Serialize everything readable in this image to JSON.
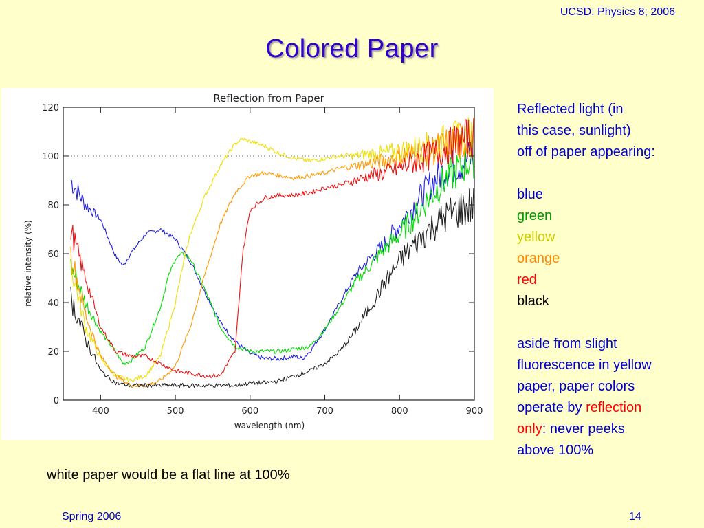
{
  "header": {
    "course": "UCSD: Physics 8; 2006"
  },
  "slide": {
    "title": "Colored Paper"
  },
  "side_text": {
    "intro": [
      "Reflected light (in",
      "this case, sunlight)",
      "off of paper appearing:"
    ],
    "colors": [
      {
        "label": "blue",
        "color": "#0000cc"
      },
      {
        "label": "green",
        "color": "#009900"
      },
      {
        "label": "yellow",
        "color": "#cccc00"
      },
      {
        "label": "orange",
        "color": "#ff8800"
      },
      {
        "label": "red",
        "color": "#ff0000"
      },
      {
        "label": "black",
        "color": "#000000"
      }
    ],
    "aside": [
      "aside from slight",
      "fluorescence in yellow",
      "paper, paper colors"
    ],
    "operate_prefix": "operate by ",
    "reflection_word": "reflection",
    "only_word": "only",
    "only_suffix": ": never peeks",
    "last_line": "above 100%"
  },
  "caption": "white paper would be a flat line at 100%",
  "footer": {
    "left": "Spring 2006",
    "page": "14"
  },
  "chart_data": {
    "type": "line",
    "title": "Reflection from Paper",
    "xlabel": "wavelength (nm)",
    "ylabel": "relative intensity (%)",
    "xlim": [
      350,
      900
    ],
    "ylim": [
      0,
      120
    ],
    "xticks": [
      400,
      500,
      600,
      700,
      800,
      900
    ],
    "yticks": [
      0,
      20,
      40,
      60,
      80,
      100,
      120
    ],
    "reference_line": 100,
    "grid": false,
    "series": [
      {
        "name": "blue",
        "color": "#2020dd",
        "x": [
          360,
          380,
          400,
          420,
          430,
          440,
          460,
          480,
          500,
          520,
          540,
          560,
          580,
          600,
          620,
          640,
          660,
          670,
          680,
          700,
          720,
          740,
          760,
          780,
          800,
          820,
          840,
          860,
          880,
          900
        ],
        "y": [
          90,
          80,
          74,
          59,
          55,
          60,
          68,
          70,
          66,
          57,
          44,
          32,
          24,
          19,
          17,
          17,
          18,
          17,
          20,
          29,
          40,
          51,
          58,
          64,
          72,
          80,
          88,
          94,
          97,
          100
        ]
      },
      {
        "name": "green",
        "color": "#00dd00",
        "x": [
          360,
          380,
          400,
          420,
          430,
          440,
          460,
          480,
          490,
          500,
          510,
          520,
          540,
          560,
          580,
          600,
          620,
          640,
          660,
          680,
          700,
          720,
          740,
          760,
          780,
          800,
          820,
          840,
          860,
          880,
          900
        ],
        "y": [
          55,
          40,
          28,
          20,
          15,
          16,
          22,
          38,
          50,
          58,
          60,
          58,
          45,
          30,
          22,
          20,
          20,
          20,
          21,
          22,
          29,
          38,
          48,
          55,
          62,
          68,
          75,
          83,
          90,
          95,
          100
        ]
      },
      {
        "name": "yellow",
        "color": "#f0e000",
        "x": [
          360,
          380,
          400,
          420,
          440,
          460,
          480,
          500,
          510,
          520,
          540,
          560,
          580,
          590,
          600,
          620,
          640,
          660,
          680,
          700,
          720,
          740,
          760,
          780,
          800,
          820,
          840,
          860,
          880,
          900
        ],
        "y": [
          55,
          30,
          17,
          10,
          8,
          10,
          18,
          40,
          55,
          68,
          84,
          96,
          105,
          107,
          106,
          104,
          101,
          99,
          98,
          99,
          100,
          100,
          101,
          101,
          102,
          103,
          104,
          106,
          107,
          108
        ]
      },
      {
        "name": "orange",
        "color": "#ff9900",
        "x": [
          360,
          380,
          400,
          420,
          440,
          460,
          480,
          500,
          520,
          540,
          560,
          580,
          600,
          620,
          640,
          660,
          680,
          700,
          720,
          740,
          760,
          780,
          800,
          820,
          840,
          860,
          880,
          900
        ],
        "y": [
          60,
          35,
          18,
          10,
          6,
          6,
          8,
          14,
          30,
          52,
          72,
          85,
          92,
          93,
          92,
          91,
          92,
          93,
          95,
          96,
          97,
          98,
          100,
          101,
          102,
          104,
          106,
          108
        ]
      },
      {
        "name": "red",
        "color": "#ee1111",
        "x": [
          360,
          380,
          400,
          420,
          440,
          460,
          480,
          500,
          520,
          540,
          560,
          580,
          590,
          600,
          620,
          640,
          660,
          680,
          700,
          720,
          740,
          760,
          780,
          800,
          820,
          840,
          860,
          880,
          900
        ],
        "y": [
          70,
          50,
          30,
          20,
          18,
          18,
          15,
          12,
          11,
          10,
          10,
          20,
          60,
          78,
          83,
          84,
          84,
          85,
          87,
          88,
          90,
          92,
          93,
          95,
          98,
          100,
          103,
          106,
          108
        ]
      },
      {
        "name": "black",
        "color": "#222222",
        "x": [
          360,
          380,
          400,
          420,
          440,
          460,
          480,
          500,
          520,
          540,
          560,
          580,
          600,
          620,
          640,
          660,
          680,
          700,
          720,
          740,
          760,
          780,
          800,
          820,
          840,
          860,
          880,
          900
        ],
        "y": [
          42,
          25,
          12,
          7,
          6,
          6,
          6,
          6,
          6,
          6,
          6,
          6,
          7,
          7,
          8,
          10,
          12,
          15,
          20,
          28,
          38,
          48,
          57,
          64,
          70,
          75,
          78,
          80
        ]
      }
    ]
  }
}
